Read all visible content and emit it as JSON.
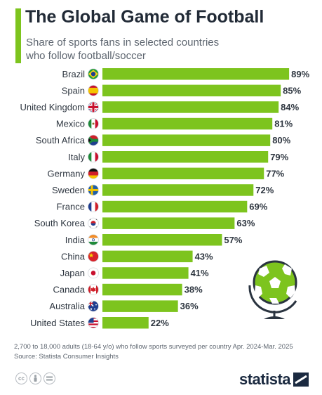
{
  "header": {
    "title": "The Global Game of Football",
    "subtitle": "Share of sports fans in selected countries who follow football/soccer"
  },
  "chart_data": {
    "type": "bar",
    "orientation": "horizontal",
    "categories": [
      "Brazil",
      "Spain",
      "United Kingdom",
      "Mexico",
      "South Africa",
      "Italy",
      "Germany",
      "Sweden",
      "France",
      "South Korea",
      "India",
      "China",
      "Japan",
      "Canada",
      "Australia",
      "United States"
    ],
    "values": [
      89,
      85,
      84,
      81,
      80,
      79,
      77,
      72,
      69,
      63,
      57,
      43,
      41,
      38,
      36,
      22
    ],
    "value_labels": [
      "89%",
      "85%",
      "84%",
      "81%",
      "80%",
      "79%",
      "77%",
      "72%",
      "69%",
      "63%",
      "57%",
      "43%",
      "41%",
      "38%",
      "36%",
      "22%"
    ],
    "unit": "%",
    "bar_color": "#7dc41e",
    "grid": false,
    "legend": "none"
  },
  "footer": {
    "note": "2,700 to 18,000 adults (18-64 y/o) who follow sports surveyed per country Apr. 2024-Mar. 2025",
    "source": "Source: Statista Consumer Insights",
    "brand": "statista"
  },
  "icons": [
    "flag-brazil",
    "flag-spain",
    "flag-united-kingdom",
    "flag-mexico",
    "flag-south-africa",
    "flag-italy",
    "flag-germany",
    "flag-sweden",
    "flag-france",
    "flag-south-korea",
    "flag-india",
    "flag-china",
    "flag-japan",
    "flag-canada",
    "flag-australia",
    "flag-united-states",
    "soccer-ball-globe",
    "creative-commons-icon",
    "attribution-icon",
    "no-derivatives-icon",
    "statista-logo"
  ]
}
